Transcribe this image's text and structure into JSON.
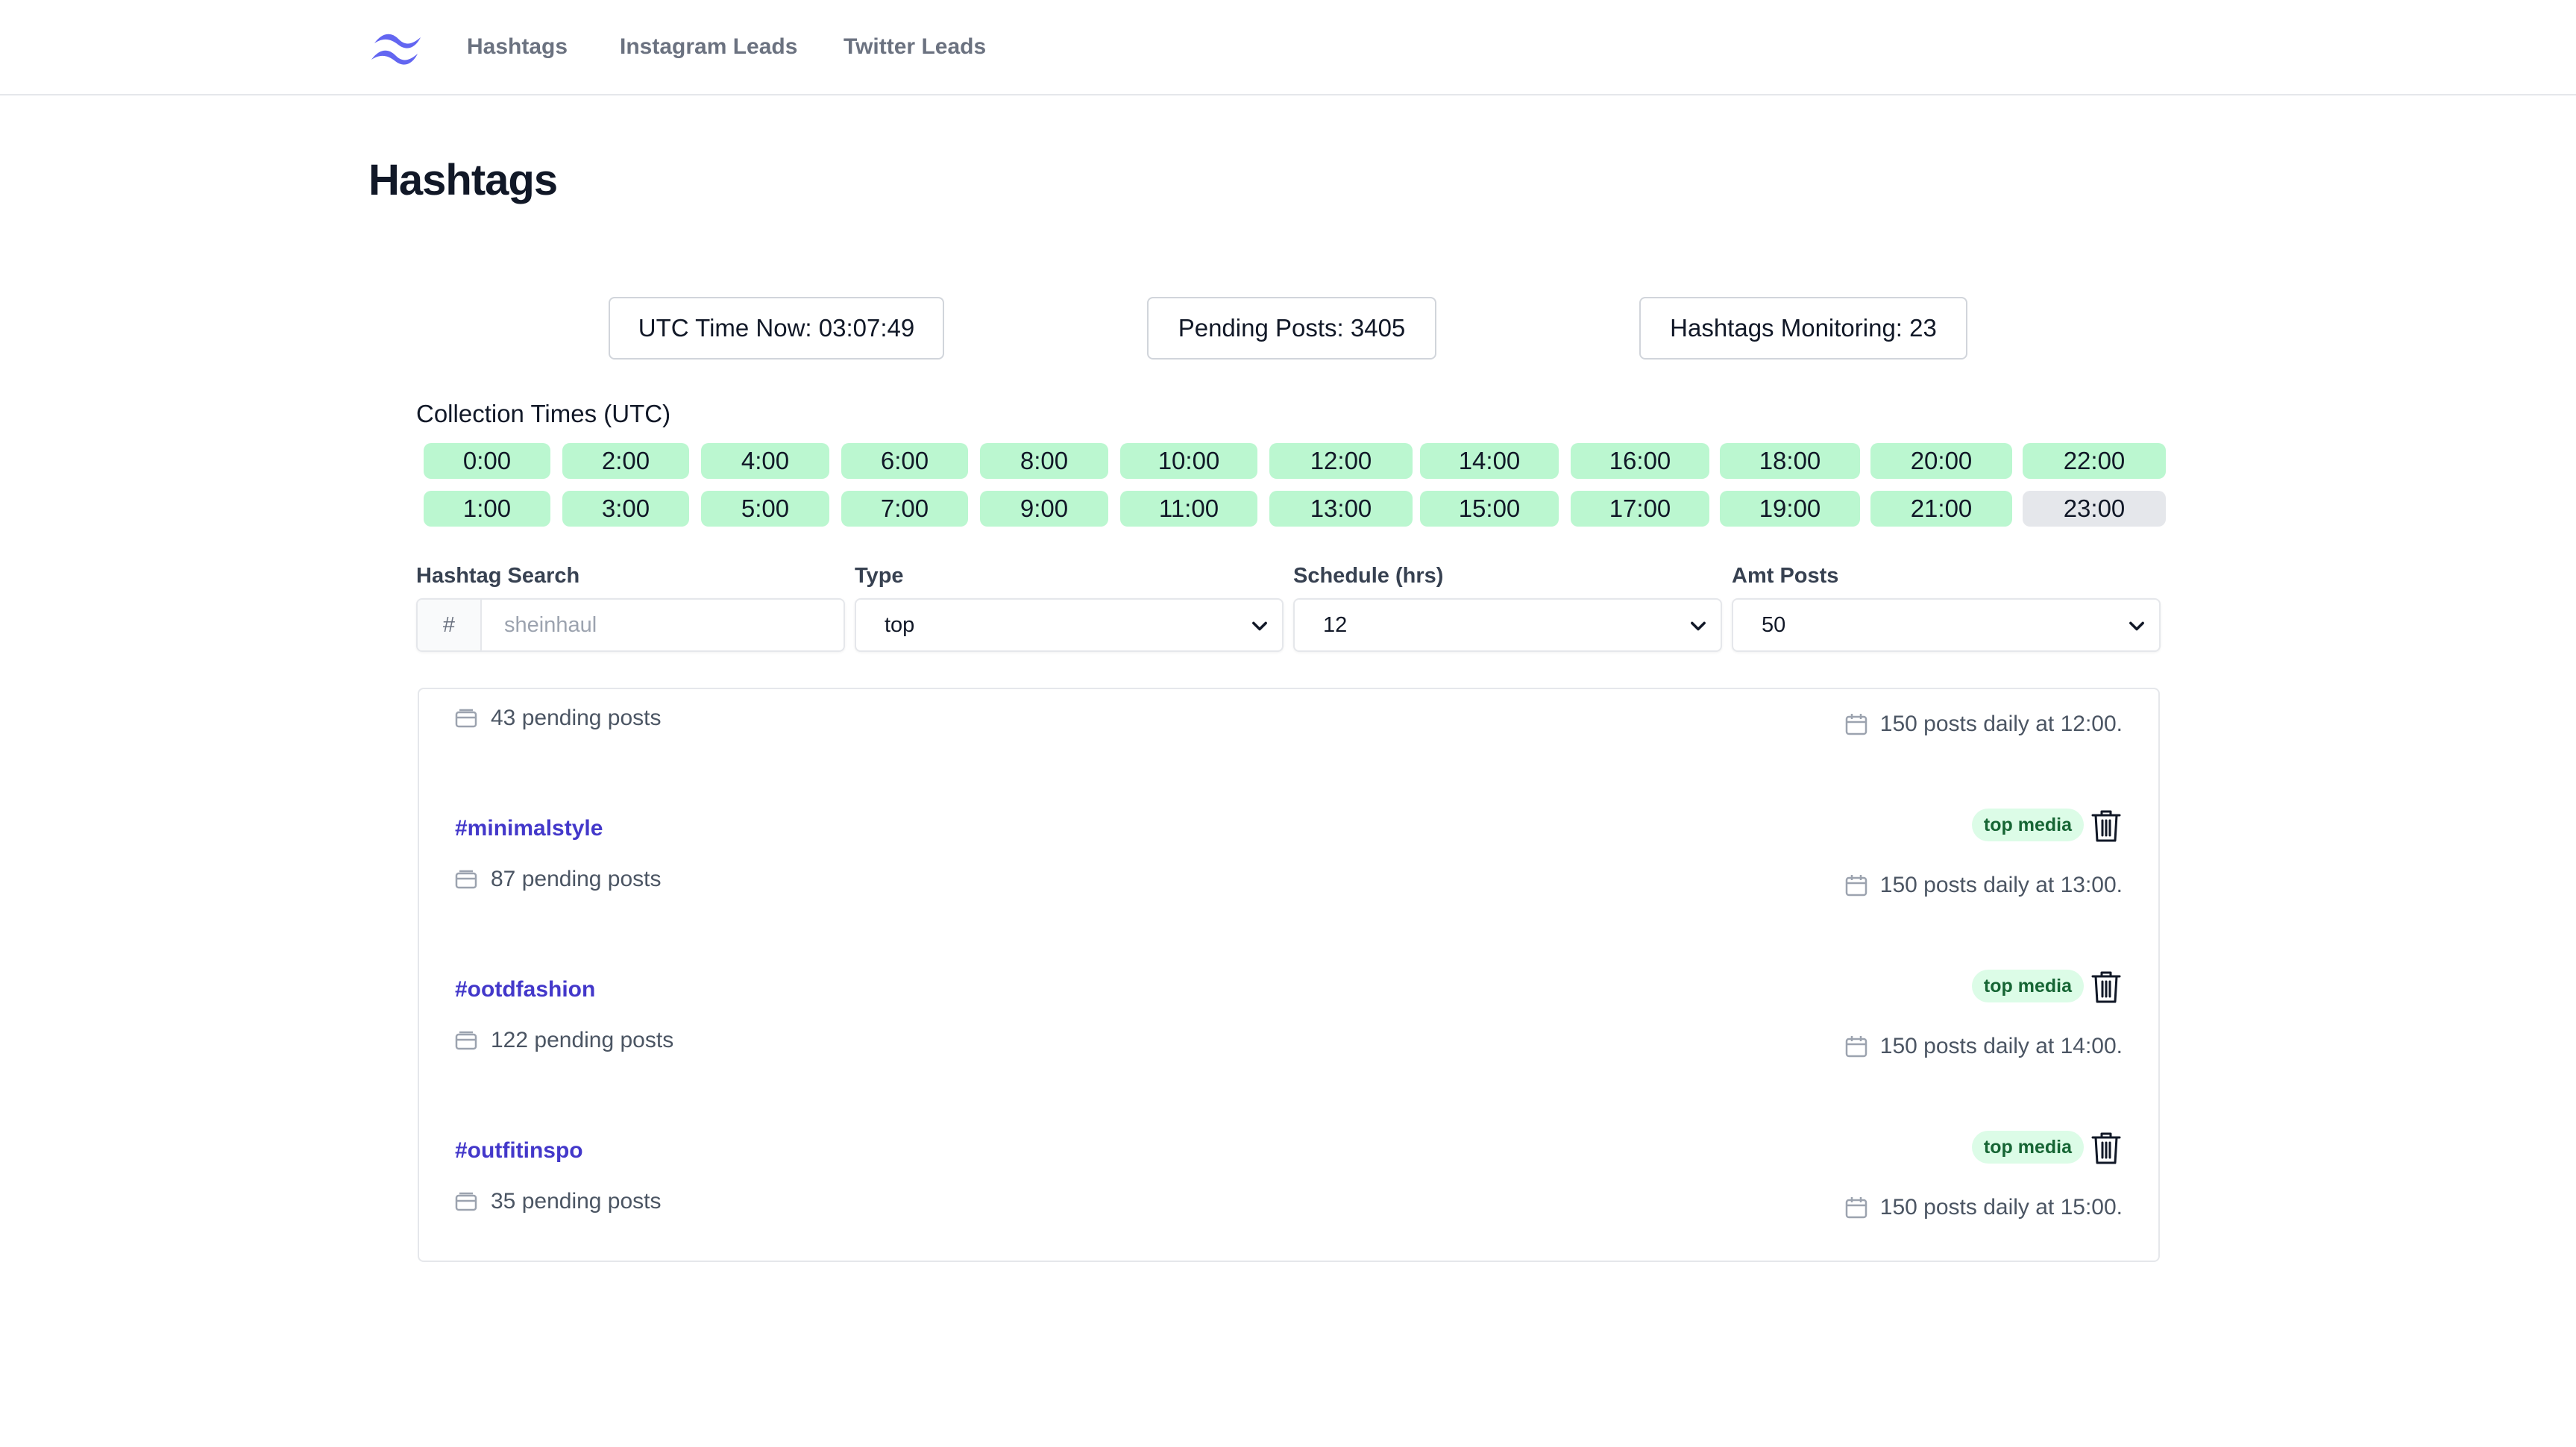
{
  "nav": {
    "links": [
      "Hashtags",
      "Instagram Leads",
      "Twitter Leads"
    ]
  },
  "page": {
    "title": "Hashtags"
  },
  "stats": {
    "utc_time": "UTC Time Now: 03:07:49",
    "pending_posts": "Pending Posts: 3405",
    "hashtags_monitoring": "Hashtags Monitoring: 23"
  },
  "collection": {
    "label": "Collection Times (UTC)",
    "row1": [
      "0:00",
      "2:00",
      "4:00",
      "6:00",
      "8:00",
      "10:00",
      "12:00",
      "14:00",
      "16:00",
      "18:00",
      "20:00",
      "22:00"
    ],
    "row2": [
      "1:00",
      "3:00",
      "5:00",
      "7:00",
      "9:00",
      "11:00",
      "13:00",
      "15:00",
      "17:00",
      "19:00",
      "21:00",
      "23:00"
    ],
    "inactive": [
      "23:00"
    ],
    "active_color": "#bbf7d0",
    "inactive_color": "#e5e7eb"
  },
  "form": {
    "search_label": "Hashtag Search",
    "search_prefix": "#",
    "search_placeholder": "sheinhaul",
    "type_label": "Type",
    "type_value": "top",
    "schedule_label": "Schedule (hrs)",
    "schedule_value": "12",
    "amount_label": "Amt Posts",
    "amount_value": "50"
  },
  "list": {
    "partial_top": {
      "pending": "43 pending posts",
      "schedule": "150 posts daily at 12:00."
    },
    "items": [
      {
        "tag": "#minimalstyle",
        "badge": "top media",
        "pending": "87 pending posts",
        "schedule": "150 posts daily at 13:00."
      },
      {
        "tag": "#ootdfashion",
        "badge": "top media",
        "pending": "122 pending posts",
        "schedule": "150 posts daily at 14:00."
      },
      {
        "tag": "#outfitinspo",
        "badge": "top media",
        "pending": "35 pending posts",
        "schedule": "150 posts daily at 15:00."
      }
    ]
  },
  "colors": {
    "accent": "#4338ca",
    "logo": "#6366f1",
    "badge_bg": "#dcfce7",
    "badge_text": "#166534"
  }
}
